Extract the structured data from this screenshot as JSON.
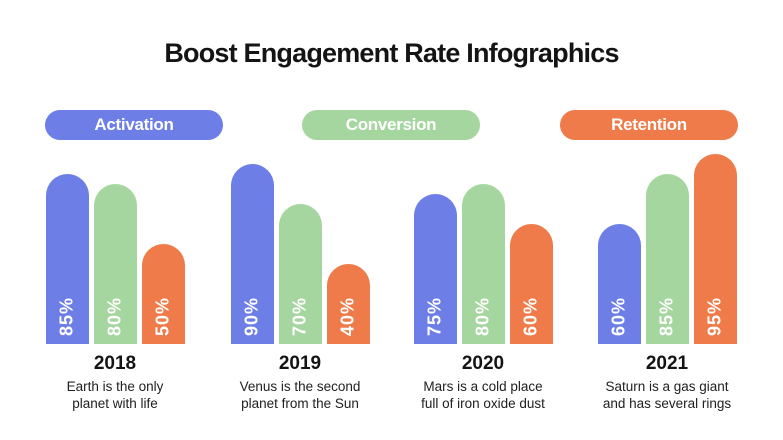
{
  "title": "Boost Engagement Rate Infographics",
  "series_colors": {
    "Activation": "#6E7EE7",
    "Conversion": "#A6D6A0",
    "Retention": "#EE7B49"
  },
  "background_color": "#FFFFFF",
  "text_color": "#141414",
  "legend": {
    "items": [
      {
        "label": "Activation",
        "color": "#6E7EE7"
      },
      {
        "label": "Conversion",
        "color": "#A6D6A0"
      },
      {
        "label": "Retention",
        "color": "#EE7B49"
      }
    ]
  },
  "groups": [
    {
      "year": "2018",
      "desc_line1": "Earth is the only",
      "desc_line2": "planet with life",
      "bars": [
        {
          "series": "Activation",
          "label": "85%"
        },
        {
          "series": "Conversion",
          "label": "80%"
        },
        {
          "series": "Retention",
          "label": "50%"
        }
      ]
    },
    {
      "year": "2019",
      "desc_line1": "Venus is the second",
      "desc_line2": "planet from the Sun",
      "bars": [
        {
          "series": "Activation",
          "label": "90%"
        },
        {
          "series": "Conversion",
          "label": "70%"
        },
        {
          "series": "Retention",
          "label": "40%"
        }
      ]
    },
    {
      "year": "2020",
      "desc_line1": "Mars is a cold place",
      "desc_line2": "full of iron oxide dust",
      "bars": [
        {
          "series": "Activation",
          "label": "75%"
        },
        {
          "series": "Conversion",
          "label": "80%"
        },
        {
          "series": "Retention",
          "label": "60%"
        }
      ]
    },
    {
      "year": "2021",
      "desc_line1": "Saturn is a gas giant",
      "desc_line2": "and has several rings",
      "bars": [
        {
          "series": "Activation",
          "label": "60%"
        },
        {
          "series": "Conversion",
          "label": "85%"
        },
        {
          "series": "Retention",
          "label": "95%"
        }
      ]
    }
  ],
  "chart_data": {
    "type": "bar",
    "title": "Boost Engagement Rate Infographics",
    "categories": [
      "2018",
      "2019",
      "2020",
      "2021"
    ],
    "series": [
      {
        "name": "Activation",
        "values": [
          85,
          90,
          75,
          60
        ]
      },
      {
        "name": "Conversion",
        "values": [
          80,
          70,
          80,
          85
        ]
      },
      {
        "name": "Retention",
        "values": [
          50,
          40,
          60,
          95
        ]
      }
    ],
    "value_format": "percent",
    "ylim": [
      0,
      100
    ],
    "grid": false,
    "legend_position": "top",
    "bar_label_orientation": "vertical-bottom-to-top",
    "annotations": [
      "Earth is the only planet with life",
      "Venus is the second planet from the Sun",
      "Mars is a cold place full of iron oxide dust",
      "Saturn is a gas giant and has several rings"
    ]
  }
}
